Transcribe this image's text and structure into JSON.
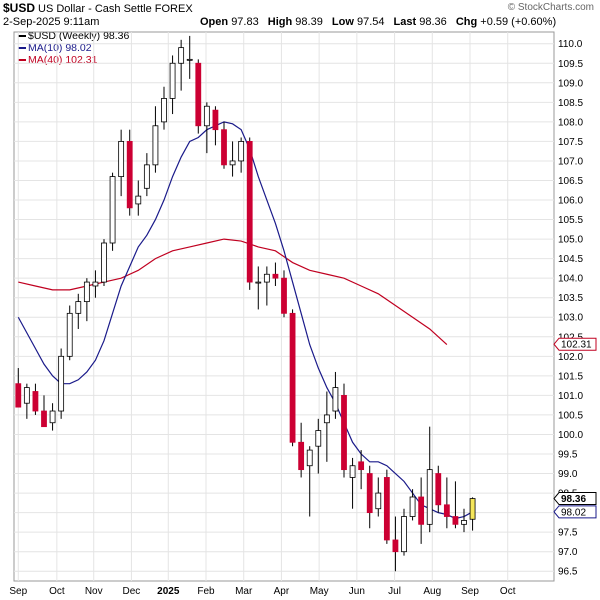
{
  "header": {
    "symbol": "$USD",
    "name": "US Dollar - Cash Settle FOREX",
    "date": "2-Sep-2025 9:11am",
    "open_label": "Open",
    "open": "97.83",
    "high_label": "High",
    "high": "98.39",
    "low_label": "Low",
    "low": "97.54",
    "last_label": "Last",
    "last": "98.36",
    "chg_label": "Chg",
    "chg": "+0.59 (+0.60%)",
    "watermark": "© StockCharts.com"
  },
  "legend": {
    "price": "$USD (Weekly) 98.36",
    "ma10": "MA(10) 98.02",
    "ma40": "MA(40) 102.31"
  },
  "colors": {
    "up_candle": "#ffffff",
    "down_candle": "#cc0033",
    "candle_outline": "#000000",
    "ma10": "#1a1a8a",
    "ma40": "#c00020",
    "last_highlight": "#f5e65a",
    "grid": "#e4e4e4"
  },
  "chart_data": {
    "type": "candlestick",
    "ylim": [
      96.25,
      110.3
    ],
    "y_ticks": [
      "96.5",
      "97.0",
      "97.5",
      "98.0",
      "98.5",
      "99.0",
      "99.5",
      "100.0",
      "100.5",
      "101.0",
      "101.5",
      "102.0",
      "102.5",
      "103.0",
      "103.5",
      "104.0",
      "104.5",
      "105.0",
      "105.5",
      "106.0",
      "106.5",
      "107.0",
      "107.5",
      "108.0",
      "108.5",
      "109.0",
      "109.5",
      "110.0"
    ],
    "x_ticks": [
      "Sep",
      "Oct",
      "Nov",
      "Dec",
      "2025",
      "Feb",
      "Mar",
      "Apr",
      "May",
      "Jun",
      "Jul",
      "Aug",
      "Sep",
      "Oct"
    ],
    "x_tick_weeks": [
      0,
      4.5,
      8.8,
      13.2,
      17.5,
      21.9,
      26.3,
      30.7,
      35.1,
      39.5,
      43.9,
      48.3,
      52.7,
      57.1
    ],
    "candles": [
      {
        "o": 101.3,
        "h": 101.7,
        "l": 100.7,
        "c": 100.7
      },
      {
        "o": 100.8,
        "h": 101.3,
        "l": 100.4,
        "c": 101.2
      },
      {
        "o": 101.1,
        "h": 101.3,
        "l": 100.5,
        "c": 100.6
      },
      {
        "o": 100.6,
        "h": 101.0,
        "l": 100.2,
        "c": 100.2
      },
      {
        "o": 100.3,
        "h": 100.8,
        "l": 100.1,
        "c": 100.6
      },
      {
        "o": 100.6,
        "h": 102.2,
        "l": 100.4,
        "c": 102.0
      },
      {
        "o": 102.0,
        "h": 103.3,
        "l": 101.9,
        "c": 103.1
      },
      {
        "o": 103.1,
        "h": 103.6,
        "l": 102.7,
        "c": 103.4
      },
      {
        "o": 103.4,
        "h": 104.0,
        "l": 102.9,
        "c": 103.9
      },
      {
        "o": 103.8,
        "h": 104.2,
        "l": 103.5,
        "c": 103.9
      },
      {
        "o": 103.9,
        "h": 105.0,
        "l": 103.8,
        "c": 104.9
      },
      {
        "o": 104.9,
        "h": 106.7,
        "l": 104.7,
        "c": 106.6
      },
      {
        "o": 106.6,
        "h": 107.8,
        "l": 106.1,
        "c": 107.5
      },
      {
        "o": 107.5,
        "h": 107.8,
        "l": 105.6,
        "c": 105.8
      },
      {
        "o": 105.9,
        "h": 106.5,
        "l": 105.6,
        "c": 106.1
      },
      {
        "o": 106.3,
        "h": 107.2,
        "l": 106.1,
        "c": 106.9
      },
      {
        "o": 106.9,
        "h": 108.4,
        "l": 106.7,
        "c": 107.9
      },
      {
        "o": 108.0,
        "h": 108.9,
        "l": 107.8,
        "c": 108.6
      },
      {
        "o": 108.6,
        "h": 109.7,
        "l": 108.2,
        "c": 109.5
      },
      {
        "o": 109.5,
        "h": 110.1,
        "l": 108.8,
        "c": 109.9
      },
      {
        "o": 109.6,
        "h": 110.2,
        "l": 109.1,
        "c": 109.6
      },
      {
        "o": 109.5,
        "h": 109.6,
        "l": 107.7,
        "c": 107.9
      },
      {
        "o": 107.9,
        "h": 108.5,
        "l": 107.2,
        "c": 108.4
      },
      {
        "o": 108.3,
        "h": 108.4,
        "l": 107.4,
        "c": 107.8
      },
      {
        "o": 107.8,
        "h": 108.0,
        "l": 106.8,
        "c": 106.9
      },
      {
        "o": 106.9,
        "h": 107.5,
        "l": 106.6,
        "c": 107.0
      },
      {
        "o": 107.0,
        "h": 107.6,
        "l": 106.7,
        "c": 107.5
      },
      {
        "o": 107.5,
        "h": 107.6,
        "l": 103.7,
        "c": 103.9
      },
      {
        "o": 103.9,
        "h": 104.3,
        "l": 103.2,
        "c": 103.9
      },
      {
        "o": 103.9,
        "h": 104.3,
        "l": 103.3,
        "c": 104.1
      },
      {
        "o": 104.1,
        "h": 104.4,
        "l": 103.8,
        "c": 104.0
      },
      {
        "o": 104.0,
        "h": 104.2,
        "l": 103.0,
        "c": 103.1
      },
      {
        "o": 103.1,
        "h": 103.2,
        "l": 99.7,
        "c": 99.8
      },
      {
        "o": 99.8,
        "h": 100.3,
        "l": 98.9,
        "c": 99.1
      },
      {
        "o": 99.2,
        "h": 99.7,
        "l": 97.9,
        "c": 99.6
      },
      {
        "o": 99.7,
        "h": 100.4,
        "l": 99.0,
        "c": 100.1
      },
      {
        "o": 100.3,
        "h": 101.1,
        "l": 99.3,
        "c": 100.5
      },
      {
        "o": 100.6,
        "h": 101.6,
        "l": 100.4,
        "c": 101.2
      },
      {
        "o": 101.0,
        "h": 101.3,
        "l": 98.9,
        "c": 99.1
      },
      {
        "o": 98.9,
        "h": 99.4,
        "l": 98.1,
        "c": 99.2
      },
      {
        "o": 99.3,
        "h": 99.6,
        "l": 98.6,
        "c": 99.1
      },
      {
        "o": 99.0,
        "h": 99.2,
        "l": 97.6,
        "c": 98.0
      },
      {
        "o": 98.1,
        "h": 98.9,
        "l": 97.9,
        "c": 98.5
      },
      {
        "o": 98.9,
        "h": 99.1,
        "l": 97.2,
        "c": 97.3
      },
      {
        "o": 97.3,
        "h": 97.9,
        "l": 96.5,
        "c": 97.0
      },
      {
        "o": 97.0,
        "h": 98.1,
        "l": 96.9,
        "c": 97.9
      },
      {
        "o": 97.9,
        "h": 98.6,
        "l": 97.8,
        "c": 98.4
      },
      {
        "o": 98.4,
        "h": 98.9,
        "l": 97.2,
        "c": 97.7
      },
      {
        "o": 97.7,
        "h": 100.2,
        "l": 97.5,
        "c": 99.1
      },
      {
        "o": 99.0,
        "h": 99.2,
        "l": 98.0,
        "c": 98.2
      },
      {
        "o": 98.2,
        "h": 98.9,
        "l": 97.6,
        "c": 97.9
      },
      {
        "o": 97.9,
        "h": 98.8,
        "l": 97.6,
        "c": 97.7
      },
      {
        "o": 97.7,
        "h": 98.1,
        "l": 97.5,
        "c": 97.8
      },
      {
        "o": 97.83,
        "h": 98.39,
        "l": 97.54,
        "c": 98.36
      }
    ],
    "ma10": [
      {
        "w": 0,
        "v": 103.0
      },
      {
        "w": 1,
        "v": 102.6
      },
      {
        "w": 2,
        "v": 102.2
      },
      {
        "w": 3,
        "v": 101.8
      },
      {
        "w": 4,
        "v": 101.5
      },
      {
        "w": 5,
        "v": 101.3
      },
      {
        "w": 6,
        "v": 101.3
      },
      {
        "w": 7,
        "v": 101.4
      },
      {
        "w": 8,
        "v": 101.6
      },
      {
        "w": 9,
        "v": 101.9
      },
      {
        "w": 10,
        "v": 102.4
      },
      {
        "w": 11,
        "v": 103.1
      },
      {
        "w": 12,
        "v": 103.8
      },
      {
        "w": 13,
        "v": 104.3
      },
      {
        "w": 14,
        "v": 104.8
      },
      {
        "w": 15,
        "v": 105.1
      },
      {
        "w": 16,
        "v": 105.5
      },
      {
        "w": 17,
        "v": 106.0
      },
      {
        "w": 18,
        "v": 106.6
      },
      {
        "w": 19,
        "v": 107.1
      },
      {
        "w": 20,
        "v": 107.5
      },
      {
        "w": 21,
        "v": 107.6
      },
      {
        "w": 22,
        "v": 107.8
      },
      {
        "w": 23,
        "v": 107.9
      },
      {
        "w": 24,
        "v": 108.0
      },
      {
        "w": 25,
        "v": 107.95
      },
      {
        "w": 26,
        "v": 107.8
      },
      {
        "w": 27,
        "v": 107.3
      },
      {
        "w": 28,
        "v": 106.6
      },
      {
        "w": 29,
        "v": 106.0
      },
      {
        "w": 30,
        "v": 105.4
      },
      {
        "w": 31,
        "v": 104.7
      },
      {
        "w": 32,
        "v": 103.9
      },
      {
        "w": 33,
        "v": 103.1
      },
      {
        "w": 34,
        "v": 102.3
      },
      {
        "w": 35,
        "v": 101.7
      },
      {
        "w": 36,
        "v": 101.2
      },
      {
        "w": 37,
        "v": 100.8
      },
      {
        "w": 38,
        "v": 100.3
      },
      {
        "w": 39,
        "v": 99.8
      },
      {
        "w": 40,
        "v": 99.5
      },
      {
        "w": 41,
        "v": 99.3
      },
      {
        "w": 42,
        "v": 99.3
      },
      {
        "w": 43,
        "v": 99.2
      },
      {
        "w": 44,
        "v": 99.0
      },
      {
        "w": 45,
        "v": 98.8
      },
      {
        "w": 46,
        "v": 98.5
      },
      {
        "w": 47,
        "v": 98.2
      },
      {
        "w": 48,
        "v": 98.1
      },
      {
        "w": 49,
        "v": 98.0
      },
      {
        "w": 50,
        "v": 97.95
      },
      {
        "w": 51,
        "v": 97.85
      },
      {
        "w": 52,
        "v": 97.9
      },
      {
        "w": 53,
        "v": 98.02
      }
    ],
    "ma40": [
      {
        "w": 0,
        "v": 103.9
      },
      {
        "w": 2,
        "v": 103.8
      },
      {
        "w": 4,
        "v": 103.7
      },
      {
        "w": 6,
        "v": 103.7
      },
      {
        "w": 8,
        "v": 103.8
      },
      {
        "w": 10,
        "v": 103.9
      },
      {
        "w": 12,
        "v": 104.0
      },
      {
        "w": 14,
        "v": 104.2
      },
      {
        "w": 16,
        "v": 104.5
      },
      {
        "w": 18,
        "v": 104.7
      },
      {
        "w": 20,
        "v": 104.8
      },
      {
        "w": 22,
        "v": 104.9
      },
      {
        "w": 24,
        "v": 105.0
      },
      {
        "w": 26,
        "v": 104.95
      },
      {
        "w": 28,
        "v": 104.8
      },
      {
        "w": 30,
        "v": 104.7
      },
      {
        "w": 32,
        "v": 104.4
      },
      {
        "w": 34,
        "v": 104.2
      },
      {
        "w": 36,
        "v": 104.1
      },
      {
        "w": 38,
        "v": 104.0
      },
      {
        "w": 40,
        "v": 103.8
      },
      {
        "w": 42,
        "v": 103.6
      },
      {
        "w": 44,
        "v": 103.3
      },
      {
        "w": 46,
        "v": 103.0
      },
      {
        "w": 48,
        "v": 102.7
      },
      {
        "w": 50,
        "v": 102.3
      }
    ],
    "price_labels": [
      {
        "text": "102.31",
        "value": 102.31,
        "style": "ma40"
      },
      {
        "text": "98.36",
        "value": 98.36,
        "style": "last"
      },
      {
        "text": "98.02",
        "value": 98.02,
        "style": "ma10"
      }
    ]
  }
}
